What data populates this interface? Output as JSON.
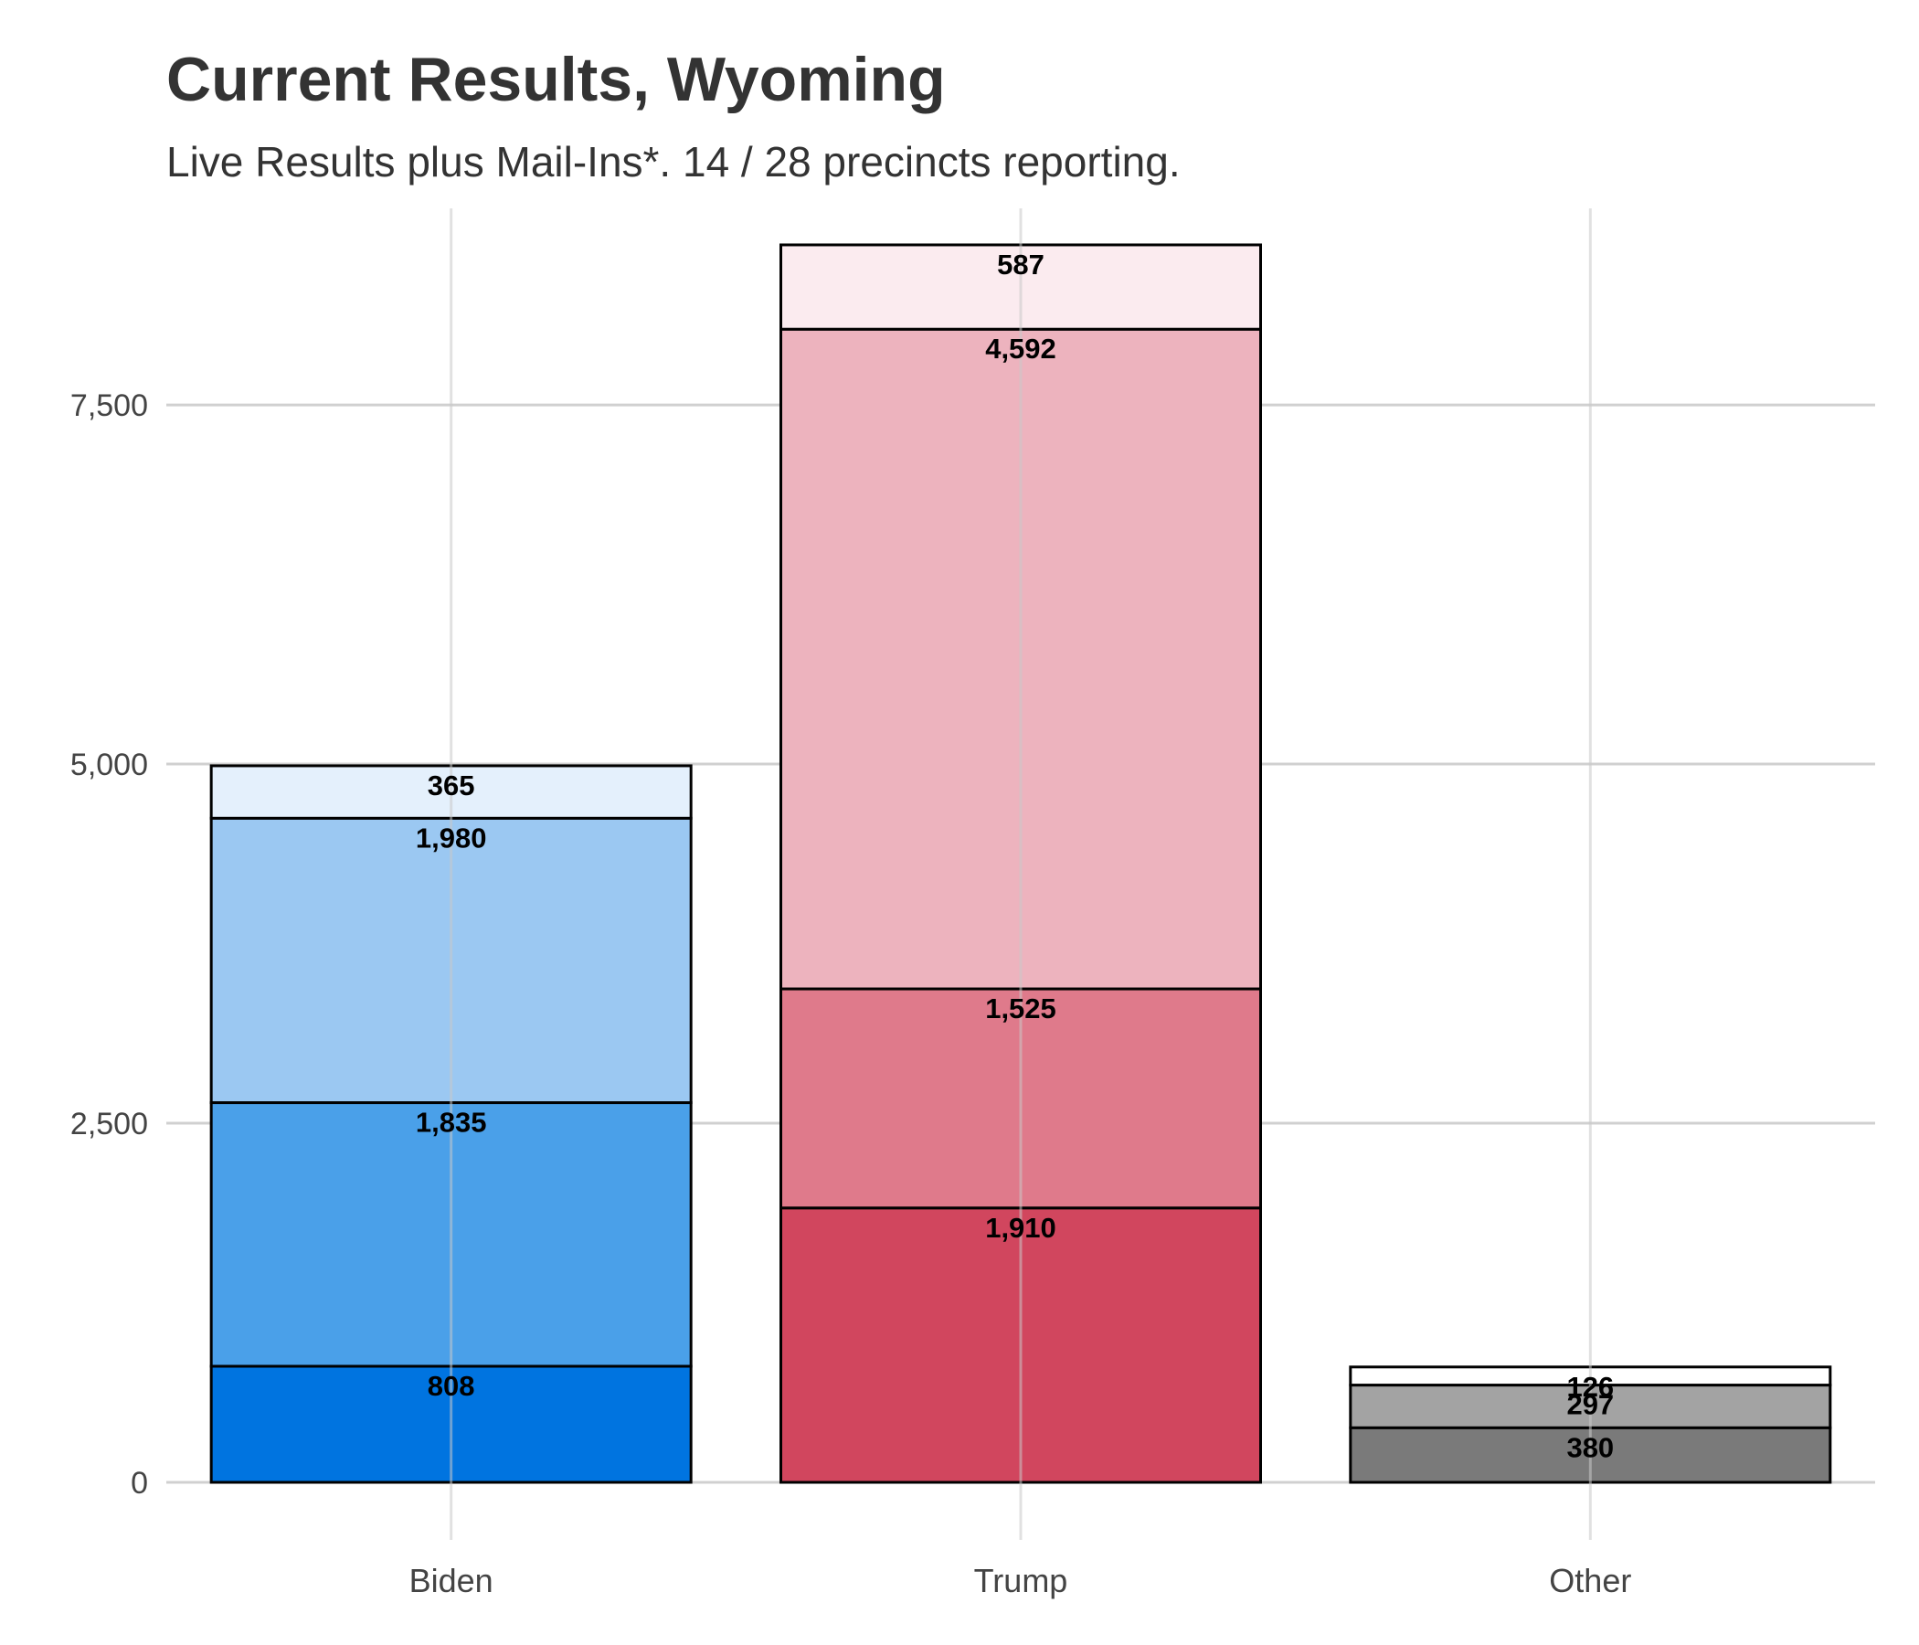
{
  "chart_data": {
    "type": "bar",
    "stacked": true,
    "title": "Current Results, Wyoming",
    "subtitle": "Live Results plus Mail-Ins*. 14 / 28 precincts reporting.",
    "xlabel": "",
    "ylabel": "",
    "ylim": [
      0,
      8900
    ],
    "yticks": [
      0,
      2500,
      5000,
      7500
    ],
    "ytick_labels": [
      "0",
      "2,500",
      "5,000",
      "7,500"
    ],
    "grid": true,
    "legend": "none",
    "categories": [
      "Biden",
      "Trump",
      "Other"
    ],
    "bars": [
      {
        "category": "Biden",
        "segments": [
          {
            "value": 808,
            "label": "808",
            "color": "#0074E0"
          },
          {
            "value": 1835,
            "label": "1,835",
            "color": "#4AA0E9"
          },
          {
            "value": 1980,
            "label": "1,980",
            "color": "#9BC8F2"
          },
          {
            "value": 365,
            "label": "365",
            "color": "#E4F0FC"
          }
        ]
      },
      {
        "category": "Trump",
        "segments": [
          {
            "value": 1910,
            "label": "1,910",
            "color": "#D1465E"
          },
          {
            "value": 1525,
            "label": "1,525",
            "color": "#DF7A8B"
          },
          {
            "value": 4592,
            "label": "4,592",
            "color": "#EDB3BE"
          },
          {
            "value": 587,
            "label": "587",
            "color": "#FBEBEF"
          }
        ]
      },
      {
        "category": "Other",
        "segments": [
          {
            "value": 380,
            "label": "380",
            "color": "#7A7A7A"
          },
          {
            "value": 297,
            "label": "297",
            "color": "#A3A3A3"
          },
          {
            "value": 126,
            "label": "126",
            "color": "#FFFFFF"
          }
        ]
      }
    ]
  }
}
